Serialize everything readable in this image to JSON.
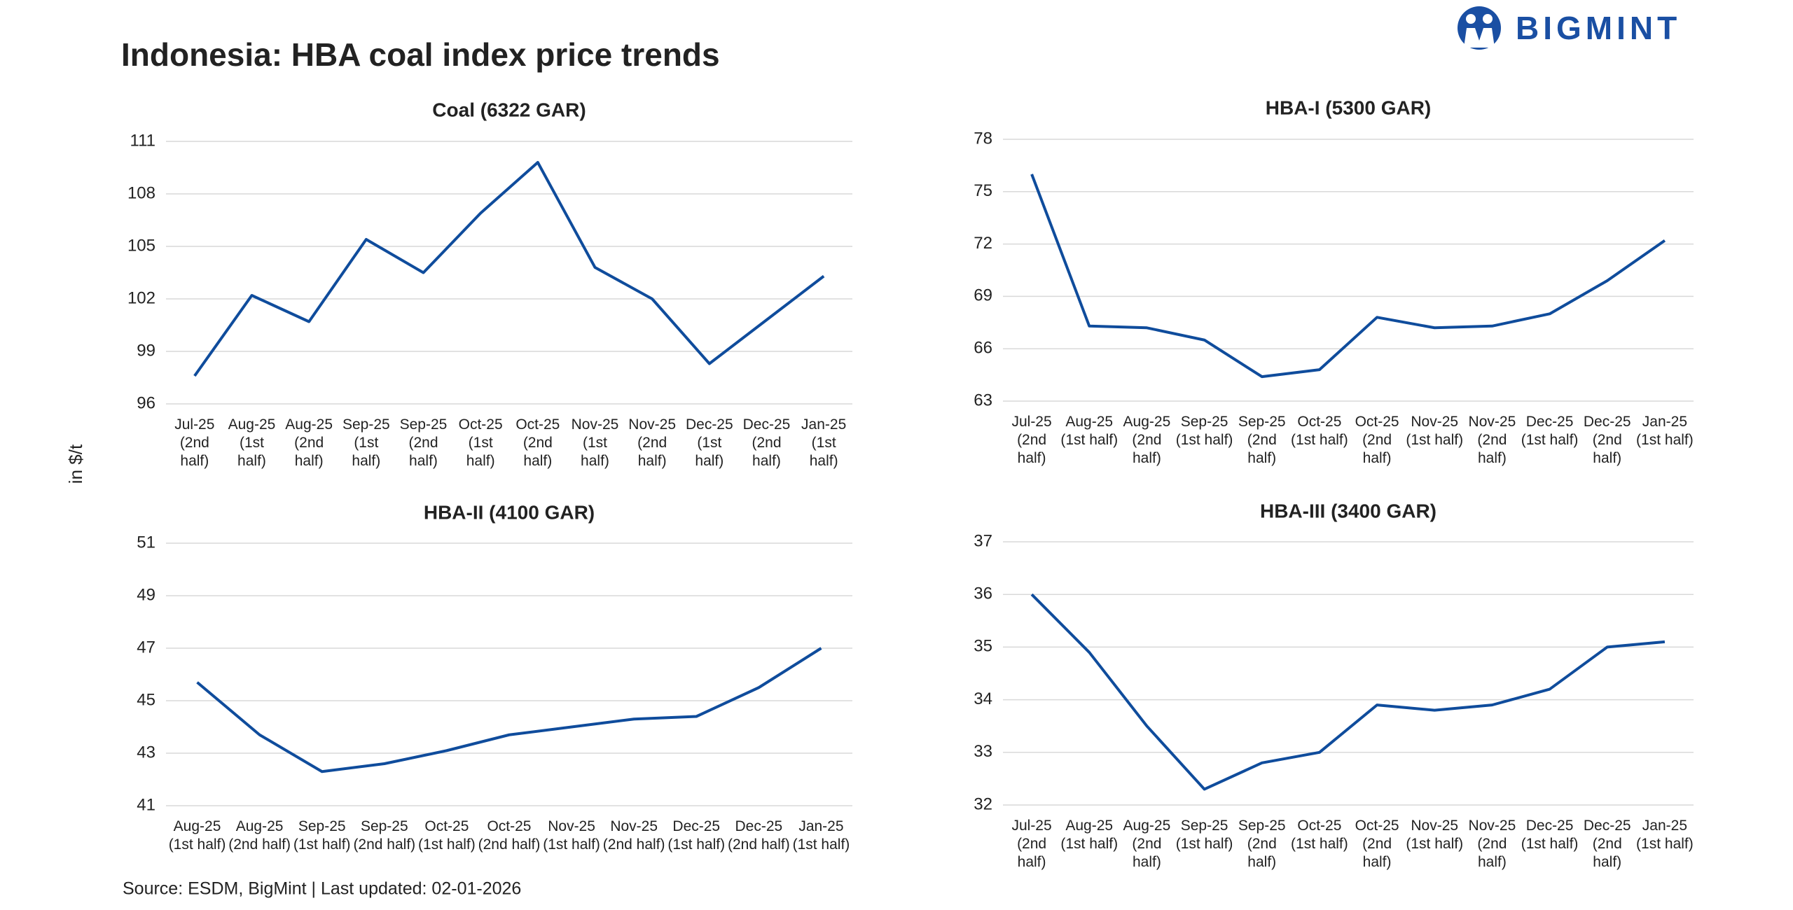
{
  "header": {
    "title": "Indonesia: HBA coal index price trends",
    "logo": "BIGMINT",
    "y_label": "in $/t",
    "source": "Source: ESDM, BigMint | Last updated: 02-01-2026"
  },
  "chart_data": [
    {
      "type": "line",
      "title": "Coal (6322 GAR)",
      "color": "#0f4c9c",
      "grid": true,
      "categories": [
        "Jul-25 (2nd half)",
        "Aug-25 (1st half)",
        "Aug-25 (2nd half)",
        "Sep-25 (1st half)",
        "Sep-25 (2nd half)",
        "Oct-25 (1st half)",
        "Oct-25 (2nd half)",
        "Nov-25 (1st half)",
        "Nov-25 (2nd half)",
        "Dec-25 (1st half)",
        "Dec-25 (2nd half)",
        "Jan-25 (1st half)"
      ],
      "values": [
        97.6,
        102.2,
        100.7,
        105.4,
        103.5,
        106.9,
        109.8,
        103.8,
        102.0,
        98.3,
        100.8,
        103.3
      ],
      "ylim": [
        96,
        111
      ],
      "yticks": [
        96,
        99,
        102,
        105,
        108,
        111
      ]
    },
    {
      "type": "line",
      "title": "HBA-I (5300 GAR)",
      "color": "#0f4c9c",
      "grid": true,
      "categories": [
        "Jul-25 (2nd half)",
        "Aug-25 (1st half)",
        "Aug-25 (2nd half)",
        "Sep-25 (1st half)",
        "Sep-25 (2nd half)",
        "Oct-25 (1st half)",
        "Oct-25 (2nd half)",
        "Nov-25 (1st half)",
        "Nov-25 (2nd half)",
        "Dec-25 (1st half)",
        "Dec-25 (2nd half)",
        "Jan-25 (1st half)"
      ],
      "values": [
        76.0,
        67.3,
        67.2,
        66.5,
        64.4,
        64.8,
        67.8,
        67.2,
        67.3,
        68.0,
        69.9,
        72.2
      ],
      "ylim": [
        63,
        78
      ],
      "yticks": [
        63,
        66,
        69,
        72,
        75,
        78
      ]
    },
    {
      "type": "line",
      "title": "HBA-II (4100 GAR)",
      "color": "#0f4c9c",
      "grid": true,
      "categories": [
        "Aug-25 (1st half)",
        "Aug-25 (2nd half)",
        "Sep-25 (1st half)",
        "Sep-25 (2nd half)",
        "Oct-25 (1st half)",
        "Oct-25 (2nd half)",
        "Nov-25 (1st half)",
        "Nov-25 (2nd half)",
        "Dec-25 (1st half)",
        "Dec-25 (2nd half)",
        "Jan-25 (1st half)"
      ],
      "values": [
        45.7,
        43.7,
        42.3,
        42.6,
        43.1,
        43.7,
        44.0,
        44.3,
        44.4,
        45.5,
        47.0
      ],
      "ylim": [
        41,
        51
      ],
      "yticks": [
        41,
        43,
        45,
        47,
        49,
        51
      ]
    },
    {
      "type": "line",
      "title": "HBA-III (3400 GAR)",
      "color": "#0f4c9c",
      "grid": true,
      "categories": [
        "Jul-25 (2nd half)",
        "Aug-25 (1st half)",
        "Aug-25 (2nd half)",
        "Sep-25 (1st half)",
        "Sep-25 (2nd half)",
        "Oct-25 (1st half)",
        "Oct-25 (2nd half)",
        "Nov-25 (1st half)",
        "Nov-25 (2nd half)",
        "Dec-25 (1st half)",
        "Dec-25 (2nd half)",
        "Jan-25 (1st half)"
      ],
      "values": [
        36.0,
        34.9,
        33.5,
        32.3,
        32.8,
        33.0,
        33.9,
        33.8,
        33.9,
        34.2,
        35.0,
        35.1
      ],
      "ylim": [
        32,
        37
      ],
      "yticks": [
        32,
        33,
        34,
        35,
        36,
        37
      ]
    }
  ]
}
